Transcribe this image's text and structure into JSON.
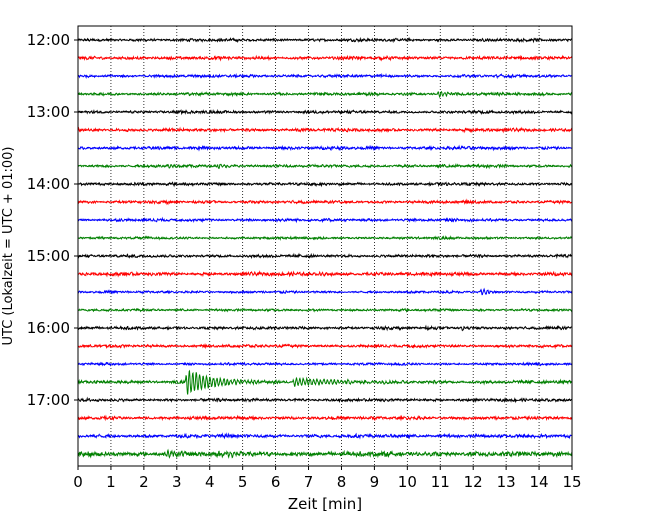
{
  "chart_data": {
    "type": "line",
    "title": "",
    "xlabel": "Zeit  [min]",
    "ylabel": "UTC (Lokalzeit = UTC + 01:00)",
    "xlim": [
      0,
      15
    ],
    "x_ticks": [
      0,
      1,
      2,
      3,
      4,
      5,
      6,
      7,
      8,
      9,
      10,
      11,
      12,
      13,
      14,
      15
    ],
    "x_tick_labels": [
      "0",
      "1",
      "2",
      "3",
      "4",
      "5",
      "6",
      "7",
      "8",
      "9",
      "10",
      "11",
      "12",
      "13",
      "14",
      "15"
    ],
    "y_tick_labels": [
      "12:00",
      "13:00",
      "14:00",
      "15:00",
      "16:00",
      "17:00"
    ],
    "minutes_per_trace": 15,
    "grid": "vertical dotted",
    "trace_colors": [
      "#000000",
      "#ff0000",
      "#0000ff",
      "#008000"
    ],
    "traces": [
      {
        "start": "12:00",
        "color": "#000000",
        "amplitude": 0.18,
        "events": []
      },
      {
        "start": "12:15",
        "color": "#ff0000",
        "amplitude": 0.2,
        "events": []
      },
      {
        "start": "12:30",
        "color": "#0000ff",
        "amplitude": 0.18,
        "events": []
      },
      {
        "start": "12:45",
        "color": "#008000",
        "amplitude": 0.18,
        "events": [
          {
            "t": 10.9,
            "amp": 0.6,
            "dur": 0.4
          }
        ]
      },
      {
        "start": "13:00",
        "color": "#000000",
        "amplitude": 0.18,
        "events": []
      },
      {
        "start": "13:15",
        "color": "#ff0000",
        "amplitude": 0.2,
        "events": []
      },
      {
        "start": "13:30",
        "color": "#0000ff",
        "amplitude": 0.2,
        "events": []
      },
      {
        "start": "13:45",
        "color": "#008000",
        "amplitude": 0.18,
        "events": [
          {
            "t": 2.7,
            "amp": 0.45,
            "dur": 0.3
          },
          {
            "t": 4.2,
            "amp": 0.5,
            "dur": 0.3
          }
        ]
      },
      {
        "start": "14:00",
        "color": "#000000",
        "amplitude": 0.18,
        "events": []
      },
      {
        "start": "14:15",
        "color": "#ff0000",
        "amplitude": 0.18,
        "events": []
      },
      {
        "start": "14:30",
        "color": "#0000ff",
        "amplitude": 0.18,
        "events": []
      },
      {
        "start": "14:45",
        "color": "#008000",
        "amplitude": 0.15,
        "events": []
      },
      {
        "start": "15:00",
        "color": "#000000",
        "amplitude": 0.18,
        "events": []
      },
      {
        "start": "15:15",
        "color": "#ff0000",
        "amplitude": 0.22,
        "events": [
          {
            "t": 7.3,
            "amp": 0.45,
            "dur": 0.3
          }
        ]
      },
      {
        "start": "15:30",
        "color": "#0000ff",
        "amplitude": 0.15,
        "events": [
          {
            "t": 12.2,
            "amp": 0.6,
            "dur": 0.4
          }
        ]
      },
      {
        "start": "15:45",
        "color": "#008000",
        "amplitude": 0.15,
        "events": []
      },
      {
        "start": "16:00",
        "color": "#000000",
        "amplitude": 0.18,
        "events": [
          {
            "t": 11.6,
            "amp": 0.45,
            "dur": 0.3
          }
        ]
      },
      {
        "start": "16:15",
        "color": "#ff0000",
        "amplitude": 0.18,
        "events": []
      },
      {
        "start": "16:30",
        "color": "#0000ff",
        "amplitude": 0.15,
        "events": []
      },
      {
        "start": "16:45",
        "color": "#008000",
        "amplitude": 0.2,
        "events": [
          {
            "t": 3.25,
            "amp": 2.2,
            "dur": 1.3
          },
          {
            "t": 6.5,
            "amp": 0.7,
            "dur": 2.3
          }
        ]
      },
      {
        "start": "17:00",
        "color": "#000000",
        "amplitude": 0.18,
        "events": []
      },
      {
        "start": "17:15",
        "color": "#ff0000",
        "amplitude": 0.2,
        "events": []
      },
      {
        "start": "17:30",
        "color": "#0000ff",
        "amplitude": 0.22,
        "events": []
      },
      {
        "start": "17:45",
        "color": "#008000",
        "amplitude": 0.3,
        "events": [
          {
            "t": 2.6,
            "amp": 0.45,
            "dur": 0.8
          },
          {
            "t": 4.5,
            "amp": 0.35,
            "dur": 0.8
          }
        ]
      }
    ]
  }
}
